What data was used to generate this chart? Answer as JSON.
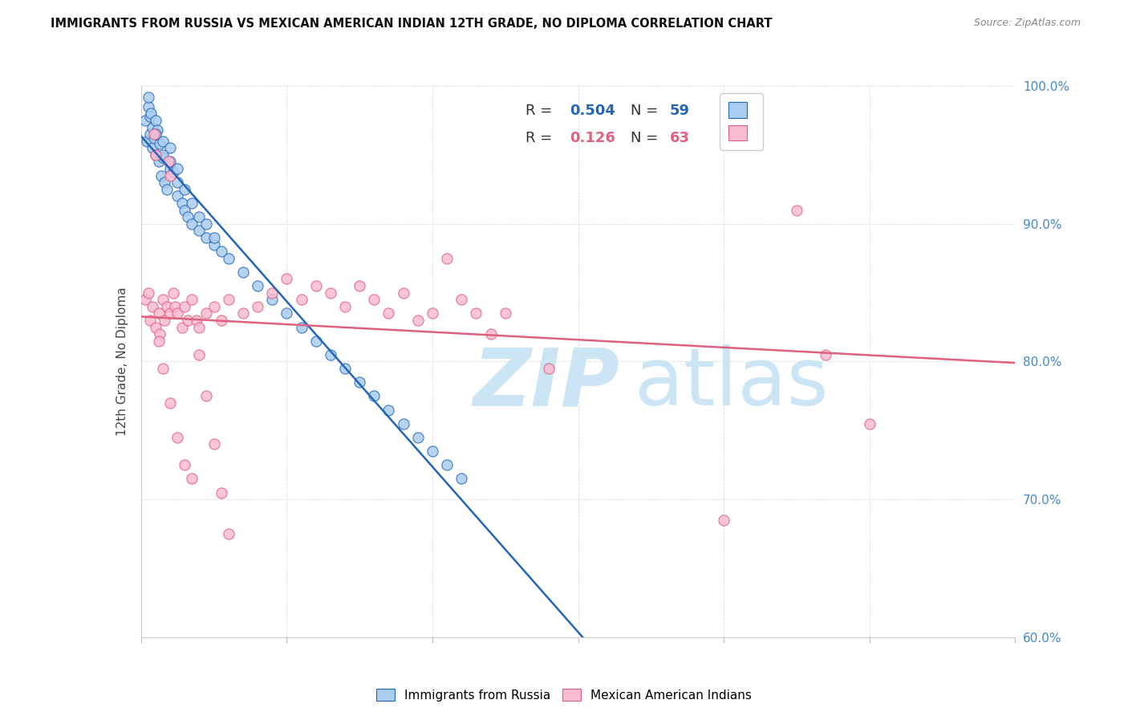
{
  "title": "IMMIGRANTS FROM RUSSIA VS MEXICAN AMERICAN INDIAN 12TH GRADE, NO DIPLOMA CORRELATION CHART",
  "source": "Source: ZipAtlas.com",
  "ylabel": "12th Grade, No Diploma",
  "legend_label1": "Immigrants from Russia",
  "legend_label2": "Mexican American Indians",
  "R1": 0.504,
  "N1": 59,
  "R2": 0.126,
  "N2": 63,
  "color1": "#aaccee",
  "color2": "#f8bbd0",
  "line_color1": "#2266bb",
  "line_color2": "#e06080",
  "xmin": 0.0,
  "xmax": 60.0,
  "ymin": 60.0,
  "ymax": 100.0,
  "ytick_color": "#4488cc",
  "xtick_label_color": "#4488cc",
  "grid_color": "#dddddd",
  "blue_x": [
    0.3,
    0.4,
    0.5,
    0.5,
    0.6,
    0.6,
    0.7,
    0.8,
    0.8,
    0.9,
    1.0,
    1.0,
    1.1,
    1.2,
    1.3,
    1.4,
    1.5,
    1.5,
    1.6,
    1.8,
    2.0,
    2.0,
    2.2,
    2.5,
    2.5,
    2.8,
    3.0,
    3.2,
    3.5,
    4.0,
    4.5,
    5.0,
    5.5,
    6.0,
    7.0,
    8.0,
    9.0,
    10.0,
    11.0,
    12.0,
    13.0,
    14.0,
    15.0,
    16.0,
    17.0,
    18.0,
    19.0,
    20.0,
    21.0,
    22.0,
    1.0,
    1.5,
    2.0,
    2.5,
    3.0,
    3.5,
    4.0,
    4.5,
    5.0
  ],
  "blue_y": [
    97.5,
    96.0,
    98.5,
    99.2,
    97.8,
    96.5,
    98.0,
    95.5,
    97.0,
    96.2,
    95.0,
    97.5,
    96.8,
    94.5,
    95.8,
    93.5,
    94.8,
    96.0,
    93.0,
    92.5,
    94.0,
    95.5,
    93.8,
    93.0,
    92.0,
    91.5,
    91.0,
    90.5,
    90.0,
    89.5,
    89.0,
    88.5,
    88.0,
    87.5,
    86.5,
    85.5,
    84.5,
    83.5,
    82.5,
    81.5,
    80.5,
    79.5,
    78.5,
    77.5,
    76.5,
    75.5,
    74.5,
    73.5,
    72.5,
    71.5,
    96.5,
    95.0,
    94.5,
    94.0,
    92.5,
    91.5,
    90.5,
    90.0,
    89.0
  ],
  "pink_x": [
    0.3,
    0.5,
    0.6,
    0.8,
    0.9,
    1.0,
    1.0,
    1.2,
    1.3,
    1.5,
    1.6,
    1.8,
    1.9,
    2.0,
    2.0,
    2.2,
    2.3,
    2.5,
    2.8,
    3.0,
    3.2,
    3.5,
    3.8,
    4.0,
    4.5,
    5.0,
    5.5,
    6.0,
    7.0,
    8.0,
    9.0,
    10.0,
    11.0,
    12.0,
    13.0,
    14.0,
    15.0,
    16.0,
    17.0,
    18.0,
    19.0,
    20.0,
    21.0,
    22.0,
    23.0,
    24.0,
    25.0,
    1.2,
    1.5,
    2.0,
    2.5,
    3.0,
    3.5,
    4.0,
    4.5,
    5.0,
    5.5,
    6.0,
    40.0,
    45.0,
    47.0,
    50.0,
    28.0
  ],
  "pink_y": [
    84.5,
    85.0,
    83.0,
    84.0,
    96.5,
    82.5,
    95.0,
    83.5,
    82.0,
    84.5,
    83.0,
    84.0,
    94.5,
    83.5,
    93.5,
    85.0,
    84.0,
    83.5,
    82.5,
    84.0,
    83.0,
    84.5,
    83.0,
    82.5,
    83.5,
    84.0,
    83.0,
    84.5,
    83.5,
    84.0,
    85.0,
    86.0,
    84.5,
    85.5,
    85.0,
    84.0,
    85.5,
    84.5,
    83.5,
    85.0,
    83.0,
    83.5,
    87.5,
    84.5,
    83.5,
    82.0,
    83.5,
    81.5,
    79.5,
    77.0,
    74.5,
    72.5,
    71.5,
    80.5,
    77.5,
    74.0,
    70.5,
    67.5,
    68.5,
    91.0,
    80.5,
    75.5,
    79.5
  ],
  "watermark_zip_color": "#cce5f5",
  "watermark_atlas_color": "#cce5f5"
}
